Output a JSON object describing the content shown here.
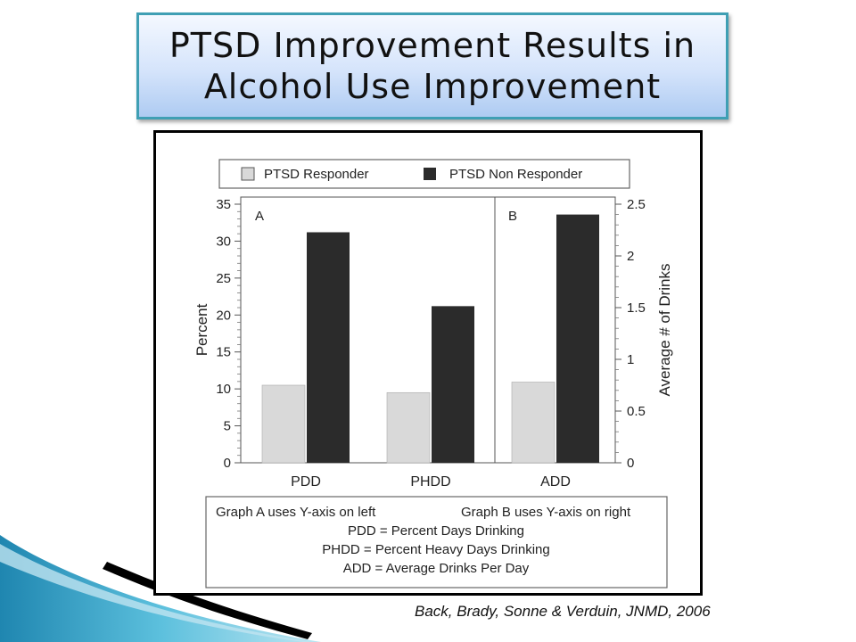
{
  "slide": {
    "title_line1": "PTSD Improvement Results in",
    "title_line2": "Alcohol Use Improvement",
    "citation": "Back, Brady, Sonne & Verduin, JNMD, 2006"
  },
  "colors": {
    "title_border": "#3f9fb4",
    "responder": "#d9d9d9",
    "non_responder": "#2b2b2b",
    "accent_teal": "#2f9fc0"
  },
  "chart_data": {
    "type": "bar",
    "legend": [
      "PTSD Responder",
      "PTSD Non Responder"
    ],
    "legend_placement": "top",
    "panels": [
      {
        "label": "A",
        "axis": "left",
        "ylabel": "Percent",
        "ylim": [
          0,
          35
        ],
        "yticks": [
          0,
          5,
          10,
          15,
          20,
          25,
          30,
          35
        ],
        "categories": [
          "PDD",
          "PHDD"
        ],
        "series": [
          {
            "name": "PTSD Responder",
            "values": [
              10.5,
              9.5
            ]
          },
          {
            "name": "PTSD Non Responder",
            "values": [
              31.2,
              21.2
            ]
          }
        ]
      },
      {
        "label": "B",
        "axis": "right",
        "ylabel": "Average # of Drinks",
        "ylim": [
          0,
          2.5
        ],
        "yticks": [
          "0",
          "0.5",
          "1",
          "1.5",
          "2",
          "2.5"
        ],
        "categories": [
          "ADD"
        ],
        "series": [
          {
            "name": "PTSD Responder",
            "values": [
              0.78
            ]
          },
          {
            "name": "PTSD Non Responder",
            "values": [
              2.4
            ]
          }
        ]
      }
    ],
    "notes": [
      "Graph A uses Y-axis on left",
      "Graph B uses Y-axis on right",
      "PDD = Percent Days Drinking",
      "PHDD = Percent Heavy Days Drinking",
      "ADD = Average Drinks Per Day"
    ],
    "grid": false
  }
}
